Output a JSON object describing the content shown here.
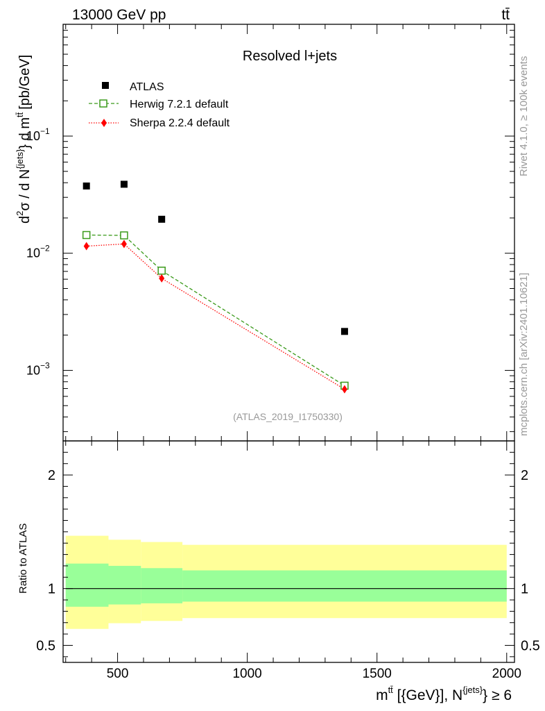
{
  "header": {
    "left": "13000 GeV pp",
    "right": "tt̄"
  },
  "side_text": {
    "rivet": "Rivet 4.1.0, ≥ 100k events",
    "mcplots": "mcplots.cern.ch [arXiv:2401.10621]"
  },
  "colors": {
    "atlas": "#000000",
    "herwig": "#3a9a1a",
    "sherpa": "#ff0000",
    "band_outer": "#ffff99",
    "band_inner": "#99ff99",
    "ref_id": "#999999"
  },
  "chart_data": [
    {
      "type": "scatter",
      "panel": "main",
      "title": "Resolved l+jets",
      "analysis_id": "(ATLAS_2019_I1750330)",
      "ylabel_parts": {
        "d": "d",
        "two": "2",
        "sigma": "σ  /  d N",
        "jets": "{jets}",
        "brace": "} d m",
        "ttbar": "tt̄",
        "unit": "[pb/GeV]"
      },
      "yscale": "log",
      "xlim": [
        290,
        2030
      ],
      "ylim": [
        0.00025,
        0.9
      ],
      "yticks": [
        {
          "value": 0.1,
          "base": "10",
          "exp": "−1"
        },
        {
          "value": 0.01,
          "base": "10",
          "exp": "−2"
        },
        {
          "value": 0.001,
          "base": "10",
          "exp": "−3"
        }
      ],
      "legend_position": "top-left",
      "series": [
        {
          "name": "ATLAS",
          "marker": "filled-square",
          "x": [
            380,
            525,
            670,
            1375
          ],
          "y": [
            0.0375,
            0.0388,
            0.0195,
            0.00215
          ]
        },
        {
          "name": "Herwig 7.2.1 default",
          "marker": "open-square",
          "line": "dashed",
          "x": [
            380,
            525,
            670,
            1375
          ],
          "y": [
            0.0143,
            0.0142,
            0.0071,
            0.00074
          ]
        },
        {
          "name": "Sherpa 2.2.4 default",
          "marker": "diamond",
          "line": "dotted",
          "x": [
            380,
            525,
            670,
            1375
          ],
          "y": [
            0.0115,
            0.012,
            0.0061,
            0.00069
          ]
        }
      ]
    },
    {
      "type": "area",
      "panel": "ratio",
      "ylabel": "Ratio to ATLAS",
      "xlabel_parts": {
        "m": "m",
        "ttbar": "tt̄",
        "rest1": " [{GeV}], N",
        "jets": "{jets}",
        "rest2": "} ≥ 6"
      },
      "xlim": [
        290,
        2030
      ],
      "ylim": [
        0.35,
        2.3
      ],
      "xticks": [
        500,
        1000,
        1500,
        2000
      ],
      "xtick_labels": [
        "500",
        "1000",
        "1500",
        "2000"
      ],
      "yticks": [
        0.5,
        1,
        2
      ],
      "ytick_labels": [
        "0.5",
        "1",
        "2"
      ],
      "reference_line": 1,
      "bands": [
        {
          "x_low": 300,
          "x_high": 465,
          "outer": [
            0.645,
            1.465
          ],
          "inner": [
            0.84,
            1.22
          ]
        },
        {
          "x_low": 465,
          "x_high": 590,
          "outer": [
            0.695,
            1.43
          ],
          "inner": [
            0.86,
            1.2
          ]
        },
        {
          "x_low": 590,
          "x_high": 750,
          "outer": [
            0.715,
            1.41
          ],
          "inner": [
            0.87,
            1.18
          ]
        },
        {
          "x_low": 750,
          "x_high": 2000,
          "outer": [
            0.74,
            1.385
          ],
          "inner": [
            0.885,
            1.16
          ]
        }
      ]
    }
  ]
}
